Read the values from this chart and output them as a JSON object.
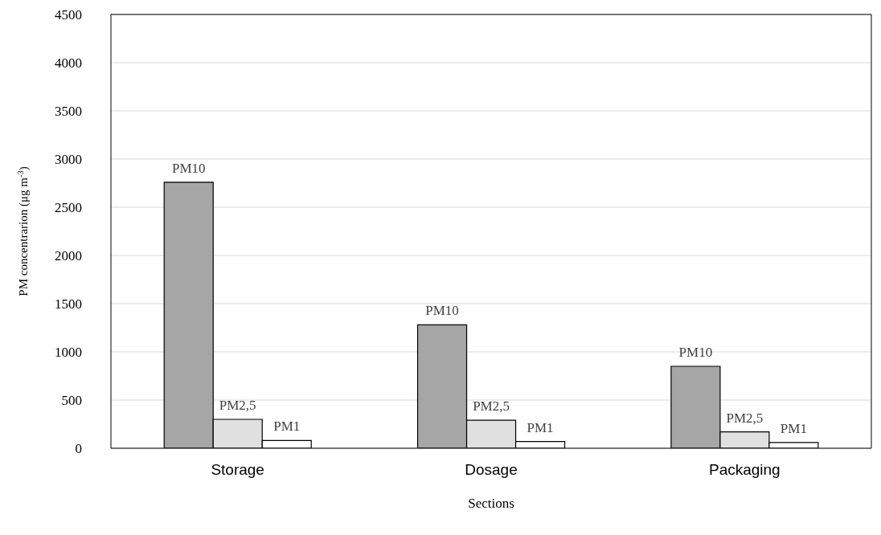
{
  "chart_data": {
    "type": "bar",
    "xlabel": "Sections",
    "ylabel": "PM concentrarion (μg m$^{-3}$)",
    "categories": [
      "Storage",
      "Dosage",
      "Packaging"
    ],
    "series": [
      {
        "name": "PM10",
        "color": "#a6a6a6",
        "values": [
          2760,
          1280,
          850
        ]
      },
      {
        "name": "PM2,5",
        "color": "#e0e0e0",
        "values": [
          300,
          290,
          170
        ]
      },
      {
        "name": "PM1",
        "color": "#ffffff",
        "values": [
          80,
          70,
          60
        ]
      }
    ],
    "ylim": [
      0,
      4500
    ],
    "yticks": [
      0,
      500,
      1000,
      1500,
      2000,
      2500,
      3000,
      3500,
      4000,
      4500
    ],
    "grid": "y",
    "legend": false
  }
}
